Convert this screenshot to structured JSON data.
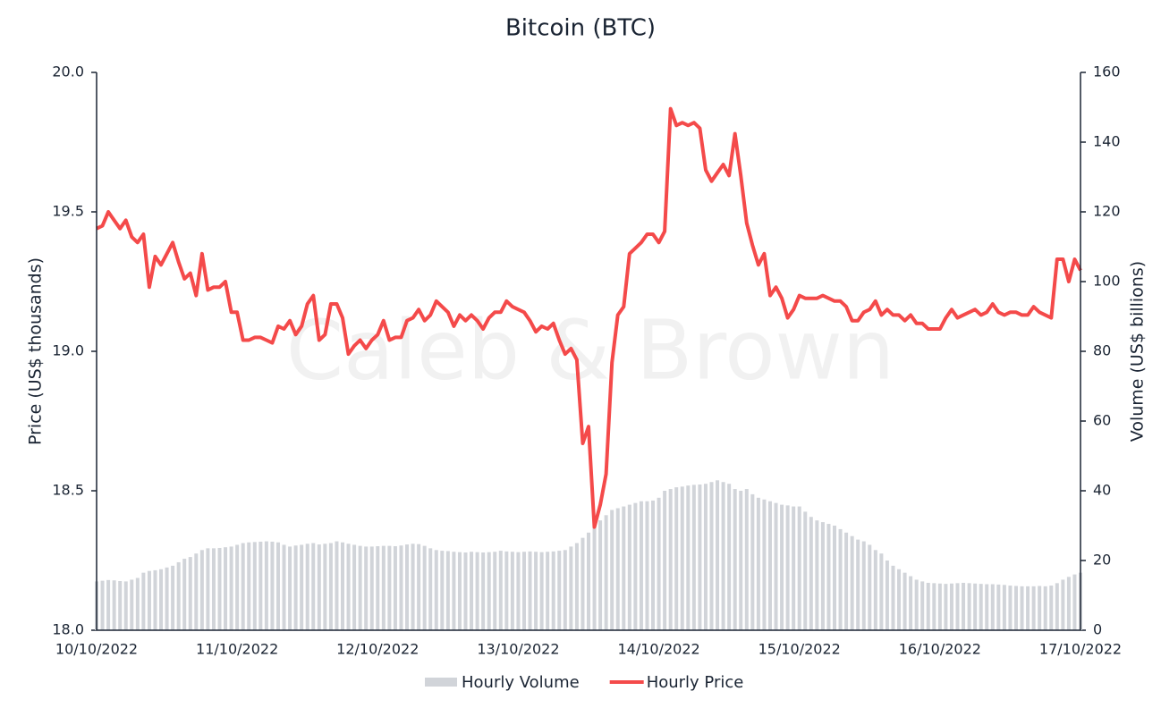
{
  "chart_data": {
    "type": "combo",
    "title": "Bitcoin (BTC)",
    "watermark": "Caleb & Brown",
    "y_label": "Price (US$ thousands)",
    "y2_label": "Volume (US$ billions)",
    "categories": [
      "10/10/2022",
      null,
      null,
      null,
      null,
      null,
      null,
      null,
      null,
      null,
      null,
      null,
      null,
      null,
      null,
      null,
      null,
      null,
      null,
      null,
      null,
      null,
      null,
      null,
      "11/10/2022",
      null,
      null,
      null,
      null,
      null,
      null,
      null,
      null,
      null,
      null,
      null,
      null,
      null,
      null,
      null,
      null,
      null,
      null,
      null,
      null,
      null,
      null,
      null,
      "12/10/2022",
      null,
      null,
      null,
      null,
      null,
      null,
      null,
      null,
      null,
      null,
      null,
      null,
      null,
      null,
      null,
      null,
      null,
      null,
      null,
      null,
      null,
      null,
      null,
      "13/10/2022",
      null,
      null,
      null,
      null,
      null,
      null,
      null,
      null,
      null,
      null,
      null,
      null,
      null,
      null,
      null,
      null,
      null,
      null,
      null,
      null,
      null,
      null,
      null,
      "14/10/2022",
      null,
      null,
      null,
      null,
      null,
      null,
      null,
      null,
      null,
      null,
      null,
      null,
      null,
      null,
      null,
      null,
      null,
      null,
      null,
      null,
      null,
      null,
      null,
      "15/10/2022",
      null,
      null,
      null,
      null,
      null,
      null,
      null,
      null,
      null,
      null,
      null,
      null,
      null,
      null,
      null,
      null,
      null,
      null,
      null,
      null,
      null,
      null,
      null,
      "16/10/2022",
      null,
      null,
      null,
      null,
      null,
      null,
      null,
      null,
      null,
      null,
      null,
      null,
      null,
      null,
      null,
      null,
      null,
      null,
      null,
      null,
      null,
      null,
      null,
      "17/10/2022"
    ],
    "series": [
      {
        "name": "Hourly Volume",
        "type": "bar",
        "axis": "y2",
        "color": "#d1d4d9",
        "values": [
          14,
          14.2,
          14.4,
          14.3,
          14.1,
          14,
          14.5,
          15,
          16.5,
          17,
          17.2,
          17.5,
          18,
          18.5,
          19.5,
          20.5,
          21,
          22,
          23,
          23.5,
          23.5,
          23.6,
          23.8,
          24,
          24.5,
          25,
          25.2,
          25.3,
          25.4,
          25.5,
          25.4,
          25.2,
          24.5,
          24,
          24.3,
          24.5,
          24.8,
          25,
          24.6,
          24.8,
          25,
          25.5,
          25.2,
          24.8,
          24.5,
          24.2,
          24,
          24,
          24.1,
          24.2,
          24.2,
          24.1,
          24.3,
          24.6,
          24.8,
          24.7,
          24.2,
          23.5,
          23,
          22.8,
          22.7,
          22.5,
          22.4,
          22.3,
          22.5,
          22.4,
          22.3,
          22.4,
          22.5,
          22.8,
          22.6,
          22.5,
          22.4,
          22.5,
          22.6,
          22.5,
          22.4,
          22.5,
          22.6,
          22.8,
          23,
          24,
          25,
          26.5,
          28,
          30,
          31.5,
          33,
          34.5,
          35,
          35.5,
          36,
          36.5,
          37,
          37,
          37.2,
          38,
          40,
          40.5,
          41,
          41.2,
          41.5,
          41.7,
          41.8,
          42,
          42.5,
          43,
          42.5,
          42,
          40.5,
          40,
          40.5,
          39,
          38,
          37.5,
          37,
          36.5,
          36,
          35.8,
          35.5,
          35.5,
          34,
          32.5,
          31.5,
          31,
          30.5,
          30,
          29,
          28,
          27,
          26,
          25.5,
          24.5,
          23,
          22,
          20,
          18.5,
          17.5,
          16.5,
          15.5,
          14.5,
          14,
          13.6,
          13.5,
          13.4,
          13.3,
          13.4,
          13.5,
          13.6,
          13.5,
          13.4,
          13.3,
          13.2,
          13.2,
          13.1,
          13,
          12.8,
          12.7,
          12.6,
          12.6,
          12.6,
          12.7,
          12.6,
          12.8,
          13.5,
          14.5,
          15.3,
          16,
          16.5
        ]
      },
      {
        "name": "Hourly Price",
        "type": "line",
        "color": "#f44a4a",
        "values": [
          19.44,
          19.45,
          19.5,
          19.47,
          19.44,
          19.47,
          19.41,
          19.39,
          19.42,
          19.23,
          19.34,
          19.31,
          19.35,
          19.39,
          19.32,
          19.26,
          19.28,
          19.2,
          19.35,
          19.22,
          19.23,
          19.23,
          19.25,
          19.14,
          19.14,
          19.04,
          19.04,
          19.05,
          19.05,
          19.04,
          19.03,
          19.09,
          19.08,
          19.11,
          19.06,
          19.09,
          19.17,
          19.2,
          19.04,
          19.06,
          19.17,
          19.17,
          19.12,
          18.99,
          19.02,
          19.04,
          19.01,
          19.04,
          19.06,
          19.11,
          19.04,
          19.05,
          19.05,
          19.11,
          19.12,
          19.15,
          19.11,
          19.13,
          19.18,
          19.16,
          19.14,
          19.09,
          19.13,
          19.11,
          19.13,
          19.11,
          19.08,
          19.12,
          19.14,
          19.14,
          19.18,
          19.16,
          19.15,
          19.14,
          19.11,
          19.07,
          19.09,
          19.08,
          19.1,
          19.04,
          18.99,
          19.01,
          18.97,
          18.67,
          18.73,
          18.37,
          18.45,
          18.56,
          18.96,
          19.13,
          19.16,
          19.35,
          19.37,
          19.39,
          19.42,
          19.42,
          19.39,
          19.43,
          19.87,
          19.81,
          19.82,
          19.81,
          19.82,
          19.8,
          19.65,
          19.61,
          19.64,
          19.67,
          19.63,
          19.78,
          19.63,
          19.46,
          19.38,
          19.31,
          19.35,
          19.2,
          19.23,
          19.19,
          19.12,
          19.15,
          19.2,
          19.19,
          19.19,
          19.19,
          19.2,
          19.19,
          19.18,
          19.18,
          19.16,
          19.11,
          19.11,
          19.14,
          19.15,
          19.18,
          19.13,
          19.15,
          19.13,
          19.13,
          19.11,
          19.13,
          19.1,
          19.1,
          19.08,
          19.08,
          19.08,
          19.12,
          19.15,
          19.12,
          19.13,
          19.14,
          19.15,
          19.13,
          19.14,
          19.17,
          19.14,
          19.13,
          19.14,
          19.14,
          19.13,
          19.13,
          19.16,
          19.14,
          19.13,
          19.12,
          19.33,
          19.33,
          19.25,
          19.33,
          19.29
        ]
      }
    ],
    "ylim": [
      18,
      20
    ],
    "yticks": [
      {
        "value": 18,
        "label": "18.0"
      },
      {
        "value": 18.5,
        "label": "18.5"
      },
      {
        "value": 19,
        "label": "19.0"
      },
      {
        "value": 19.5,
        "label": "19.5"
      },
      {
        "value": 20,
        "label": "20.0"
      }
    ],
    "y2lim": [
      0,
      160
    ],
    "y2ticks": [
      0,
      20,
      40,
      60,
      80,
      100,
      120,
      140,
      160
    ],
    "legend": "bottom"
  }
}
